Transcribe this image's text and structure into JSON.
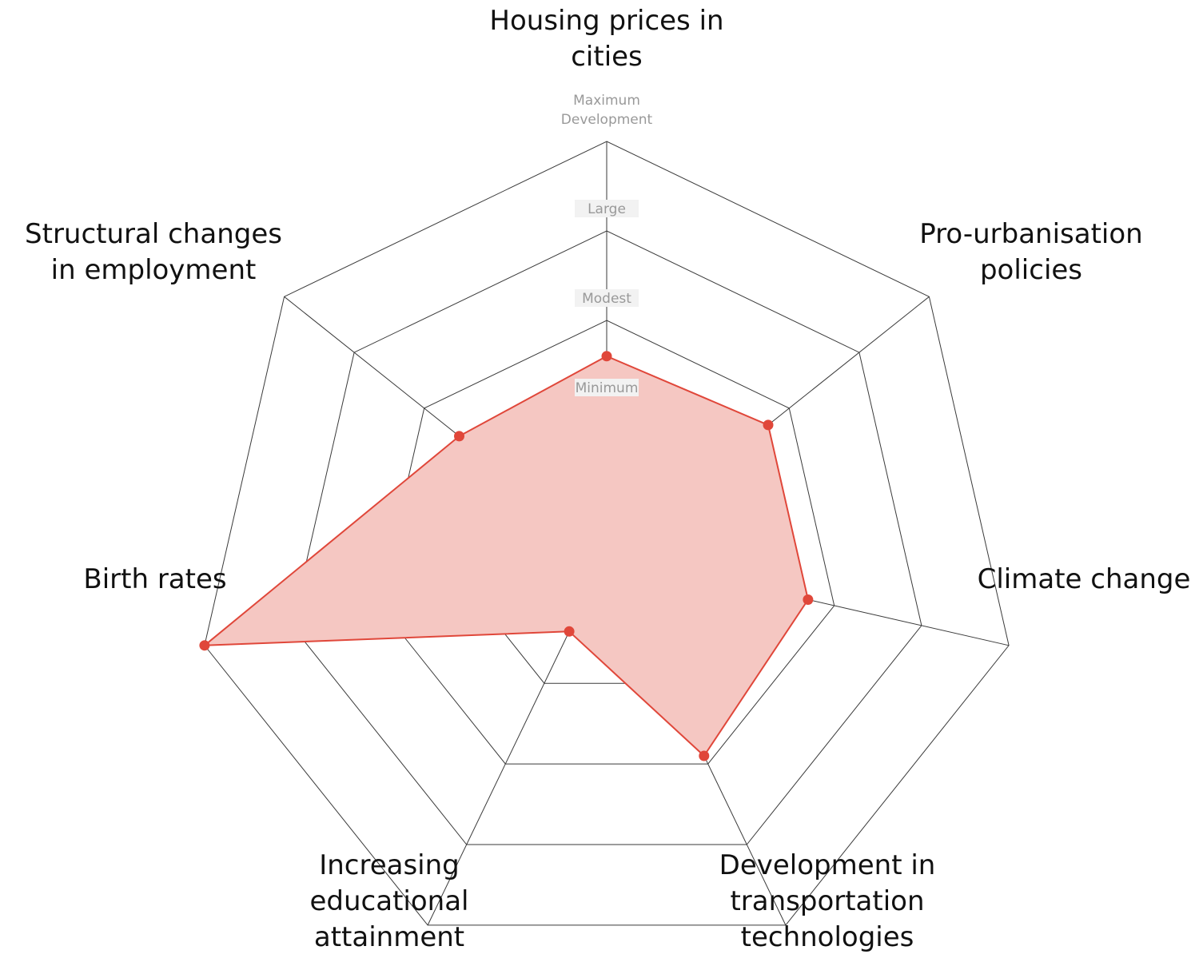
{
  "chart_data": {
    "type": "radar",
    "axes": [
      "Housing prices in cities",
      "Pro-urbanisation policies",
      "Climate change",
      "Development in transportation technologies",
      "Increasing educational attainment",
      "Birth rates",
      "Structural changes in employment"
    ],
    "axis_label_lines": [
      [
        "Housing prices in",
        "cities"
      ],
      [
        "Pro-urbanisation",
        "policies"
      ],
      [
        "Climate change"
      ],
      [
        "Development in",
        "transportation",
        "technologies"
      ],
      [
        "Increasing",
        "educational",
        "attainment"
      ],
      [
        "Birth rates"
      ],
      [
        "Structural changes",
        "in employment"
      ]
    ],
    "levels": [
      "Minimum",
      "Modest",
      "Large",
      "Maximum Development"
    ],
    "level_label_lines": [
      [
        "Minimum"
      ],
      [
        "Modest"
      ],
      [
        "Large"
      ],
      [
        "Maximum",
        "Development"
      ]
    ],
    "scale": {
      "min": 0,
      "max": 4
    },
    "values": [
      1.6,
      1.7,
      1.7,
      1.9,
      0.6,
      4.0,
      1.5
    ],
    "colors": {
      "fill": "#f5c7c2",
      "stroke": "#e0473a",
      "grid": "#3a3a3a",
      "level_text": "#999999"
    }
  }
}
